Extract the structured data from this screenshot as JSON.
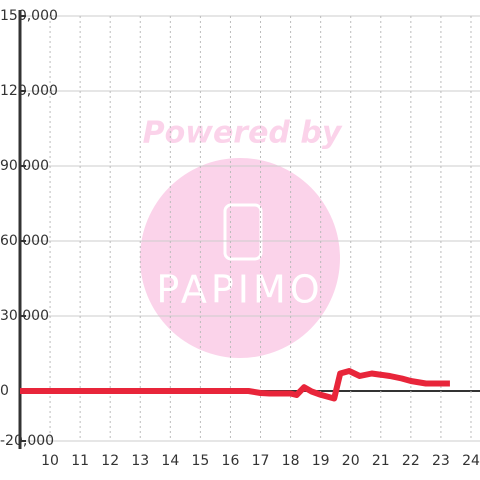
{
  "chart_data": {
    "type": "line",
    "watermark": {
      "top": "Powered by",
      "logo": "PAPIMO"
    },
    "x": [
      9,
      16.6,
      17,
      17.3,
      18,
      18.2,
      18.45,
      18.7,
      19,
      19.45,
      19.65,
      19.95,
      20.3,
      20.7,
      21.3,
      21.7,
      22,
      22.5,
      23.3
    ],
    "series": [
      {
        "name": "value",
        "color": "#e8253a",
        "values": [
          0,
          0,
          -800,
          -1000,
          -1000,
          -1600,
          1500,
          -200,
          -1500,
          -3000,
          7000,
          8000,
          6000,
          7000,
          6000,
          5000,
          4000,
          3000,
          3000
        ]
      }
    ],
    "xlim": [
      9,
      24.3
    ],
    "xticks": [
      10,
      11,
      12,
      13,
      14,
      15,
      16,
      17,
      18,
      19,
      20,
      21,
      22,
      23,
      24
    ],
    "ylim": [
      -20000,
      150000
    ],
    "yticks": [
      {
        "value": -20000,
        "label": "-20,000"
      },
      0,
      {
        "value": 30000,
        "label": "30,000"
      },
      {
        "value": 60000,
        "label": "60,000"
      },
      {
        "value": 90000,
        "label": "90,000"
      },
      {
        "value": 120000,
        "label": "120,000"
      },
      {
        "value": 150000,
        "label": "150,000"
      }
    ],
    "grid": true
  }
}
